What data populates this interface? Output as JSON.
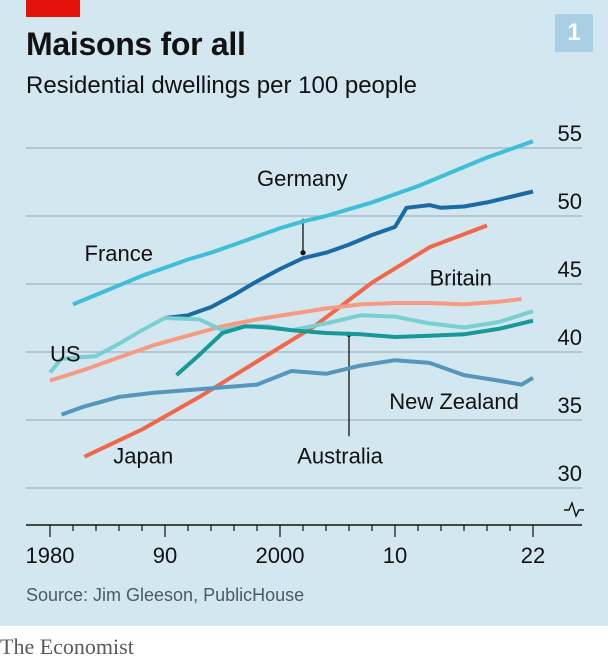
{
  "header": {
    "title": "Maisons for all",
    "subtitle": "Residential dwellings per 100 people",
    "badge": "1"
  },
  "footer": {
    "source": "Source: Jim Gleeson, PublicHouse",
    "brand": "The Economist"
  },
  "colors": {
    "background": "#d3e7f1",
    "accent": "#e3120b",
    "France": "#3ebfd7",
    "Germany": "#1b6aa8",
    "Japan": "#f0674a",
    "Britain": "#f79a82",
    "US": "#79d0d0",
    "Australia": "#17999a",
    "New Zealand": "#5596bd"
  },
  "chart_data": {
    "type": "line",
    "title": "Maisons for all",
    "subtitle": "Residential dwellings per 100 people",
    "xlim": [
      1978,
      2023
    ],
    "ylim": [
      28.5,
      57
    ],
    "y_axis_break": true,
    "x_ticks": [
      1980,
      1990,
      2000,
      2010,
      2022
    ],
    "x_tick_labels": [
      "1980",
      "90",
      "2000",
      "10",
      "22"
    ],
    "y_ticks": [
      30,
      35,
      40,
      45,
      50,
      55
    ],
    "y_tick_labels": [
      "30",
      "35",
      "40",
      "45",
      "50",
      "55"
    ],
    "grid": "horizontal",
    "legend": "direct labels",
    "series": [
      {
        "name": "France",
        "label_x": 1983,
        "label_y": 46.7,
        "points": [
          [
            1982,
            43.5
          ],
          [
            1984,
            44.2
          ],
          [
            1986,
            44.9
          ],
          [
            1988,
            45.6
          ],
          [
            1990,
            46.2
          ],
          [
            1992,
            46.8
          ],
          [
            1994,
            47.3
          ],
          [
            1996,
            47.9
          ],
          [
            1998,
            48.5
          ],
          [
            2000,
            49.1
          ],
          [
            2002,
            49.6
          ],
          [
            2004,
            50.0
          ],
          [
            2006,
            50.5
          ],
          [
            2008,
            51.0
          ],
          [
            2010,
            51.6
          ],
          [
            2012,
            52.2
          ],
          [
            2014,
            52.9
          ],
          [
            2016,
            53.6
          ],
          [
            2018,
            54.3
          ],
          [
            2020,
            54.9
          ],
          [
            2022,
            55.5
          ]
        ]
      },
      {
        "name": "Germany",
        "label_x": 1998,
        "label_y": 52.2,
        "leader": [
          2002,
          47.3,
          2002,
          49.8
        ],
        "points": [
          [
            1990,
            42.5
          ],
          [
            1992,
            42.7
          ],
          [
            1994,
            43.3
          ],
          [
            1996,
            44.2
          ],
          [
            1998,
            45.2
          ],
          [
            2000,
            46.1
          ],
          [
            2002,
            46.9
          ],
          [
            2004,
            47.3
          ],
          [
            2006,
            47.9
          ],
          [
            2008,
            48.6
          ],
          [
            2010,
            49.2
          ],
          [
            2011,
            50.6
          ],
          [
            2013,
            50.8
          ],
          [
            2014,
            50.6
          ],
          [
            2016,
            50.7
          ],
          [
            2018,
            51.0
          ],
          [
            2020,
            51.4
          ],
          [
            2022,
            51.8
          ]
        ]
      },
      {
        "name": "Japan",
        "label_x": 1985.5,
        "label_y": 31.8,
        "points": [
          [
            1983,
            32.3
          ],
          [
            1988,
            34.3
          ],
          [
            1993,
            36.7
          ],
          [
            1998,
            39.3
          ],
          [
            2003,
            41.9
          ],
          [
            2008,
            45.1
          ],
          [
            2013,
            47.7
          ],
          [
            2018,
            49.3
          ]
        ]
      },
      {
        "name": "Britain",
        "label_x": 2013,
        "label_y": 44.9,
        "points": [
          [
            1980,
            37.9
          ],
          [
            1983,
            38.7
          ],
          [
            1986,
            39.6
          ],
          [
            1989,
            40.5
          ],
          [
            1992,
            41.2
          ],
          [
            1995,
            41.9
          ],
          [
            1998,
            42.4
          ],
          [
            2001,
            42.8
          ],
          [
            2004,
            43.2
          ],
          [
            2007,
            43.5
          ],
          [
            2010,
            43.6
          ],
          [
            2013,
            43.6
          ],
          [
            2016,
            43.5
          ],
          [
            2019,
            43.7
          ],
          [
            2021,
            43.9
          ]
        ]
      },
      {
        "name": "US",
        "label_x": 1980,
        "label_y": 39.3,
        "points": [
          [
            1980,
            38.5
          ],
          [
            1981,
            39.5
          ],
          [
            1984,
            39.7
          ],
          [
            1986,
            40.6
          ],
          [
            1988,
            41.6
          ],
          [
            1990,
            42.5
          ],
          [
            1993,
            42.4
          ],
          [
            1995,
            41.6
          ],
          [
            1997,
            41.9
          ],
          [
            1999,
            41.9
          ],
          [
            2001,
            41.6
          ],
          [
            2004,
            42.1
          ],
          [
            2007,
            42.7
          ],
          [
            2010,
            42.6
          ],
          [
            2013,
            42.1
          ],
          [
            2016,
            41.8
          ],
          [
            2019,
            42.2
          ],
          [
            2022,
            43.0
          ]
        ]
      },
      {
        "name": "Australia",
        "label_x": 2001.5,
        "label_y": 31.8,
        "leader": [
          2006,
          41.3,
          2006,
          33.8
        ],
        "points": [
          [
            1991,
            38.3
          ],
          [
            1993,
            39.8
          ],
          [
            1995,
            41.4
          ],
          [
            1997,
            41.9
          ],
          [
            1999,
            41.8
          ],
          [
            2001,
            41.6
          ],
          [
            2004,
            41.4
          ],
          [
            2007,
            41.3
          ],
          [
            2010,
            41.1
          ],
          [
            2013,
            41.2
          ],
          [
            2016,
            41.3
          ],
          [
            2019,
            41.7
          ],
          [
            2022,
            42.3
          ]
        ]
      },
      {
        "name": "New Zealand",
        "label_x": 2009.5,
        "label_y": 35.8,
        "points": [
          [
            1981,
            35.4
          ],
          [
            1983,
            36.0
          ],
          [
            1986,
            36.7
          ],
          [
            1989,
            37.0
          ],
          [
            1992,
            37.2
          ],
          [
            1995,
            37.4
          ],
          [
            1998,
            37.6
          ],
          [
            2001,
            38.6
          ],
          [
            2004,
            38.4
          ],
          [
            2007,
            39.0
          ],
          [
            2010,
            39.4
          ],
          [
            2013,
            39.2
          ],
          [
            2016,
            38.3
          ],
          [
            2019,
            37.9
          ],
          [
            2021,
            37.6
          ],
          [
            2022,
            38.1
          ]
        ]
      }
    ]
  }
}
